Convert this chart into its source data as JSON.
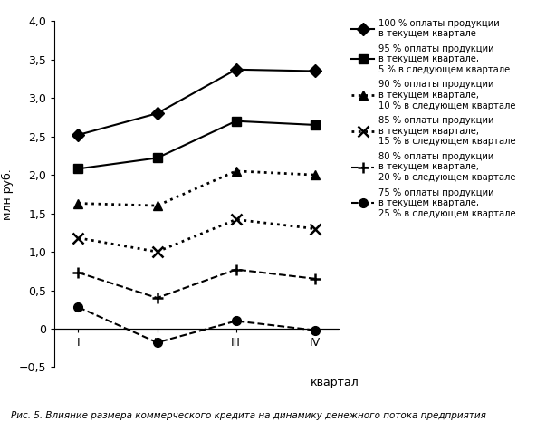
{
  "x": [
    1,
    2,
    3,
    4
  ],
  "x_labels": [
    "I",
    "II",
    "III",
    "IV"
  ],
  "series": [
    {
      "label": "100 % оплаты продукции\nв текущем квартале",
      "values": [
        2.52,
        2.8,
        3.37,
        3.35
      ],
      "linestyle": "-",
      "marker": "D",
      "markersize": 7,
      "linewidth": 1.5,
      "color": "#000000",
      "markerfacecolor": "#000000"
    },
    {
      "label": "95 % оплаты продукции\nв текущем квартале,\n5 % в следующем квартале",
      "values": [
        2.08,
        2.22,
        2.7,
        2.65
      ],
      "linestyle": "-",
      "marker": "s",
      "markersize": 7,
      "linewidth": 1.5,
      "color": "#000000",
      "markerfacecolor": "#000000"
    },
    {
      "label": "90 % оплаты продукции\nв текущем квартале,\n10 % в следующем квартале",
      "values": [
        1.63,
        1.6,
        2.05,
        2.0
      ],
      "linestyle": ":",
      "marker": "^",
      "markersize": 7,
      "linewidth": 2.0,
      "color": "#000000",
      "markerfacecolor": "#000000"
    },
    {
      "label": "85 % оплаты продукции\nв текущем квартале,\n15 % в следующем квартале",
      "values": [
        1.18,
        1.0,
        1.42,
        1.3
      ],
      "linestyle": ":",
      "marker": "x",
      "markersize": 8,
      "linewidth": 2.0,
      "color": "#000000",
      "markerfacecolor": "none"
    },
    {
      "label": "80 % оплаты продукции\nв текущем квартале,\n20 % в следующем квартале",
      "values": [
        0.73,
        0.4,
        0.77,
        0.65
      ],
      "linestyle": "--",
      "marker": "+",
      "markersize": 9,
      "linewidth": 1.5,
      "color": "#000000",
      "markerfacecolor": "none"
    },
    {
      "label": "75 % оплаты продукции\nв текущем квартале,\n25 % в следующем квартале",
      "values": [
        0.28,
        -0.18,
        0.1,
        -0.02
      ],
      "linestyle": "--",
      "marker": "o",
      "markersize": 7,
      "linewidth": 1.5,
      "color": "#000000",
      "markerfacecolor": "#000000"
    }
  ],
  "ylabel": "млн руб.",
  "xlabel": "квартал",
  "ylim": [
    -0.5,
    4.0
  ],
  "yticks": [
    -0.5,
    0.0,
    0.5,
    1.0,
    1.5,
    2.0,
    2.5,
    3.0,
    3.5,
    4.0
  ],
  "ytick_labels": [
    "−0,5",
    "0",
    "0,5",
    "1,0",
    "1,5",
    "2,0",
    "2,5",
    "3,0",
    "3,5",
    "4,0"
  ],
  "caption": "Рис. 5. Влияние размера коммерческого кредита на динамику денежного потока предприятия",
  "background_color": "#ffffff"
}
